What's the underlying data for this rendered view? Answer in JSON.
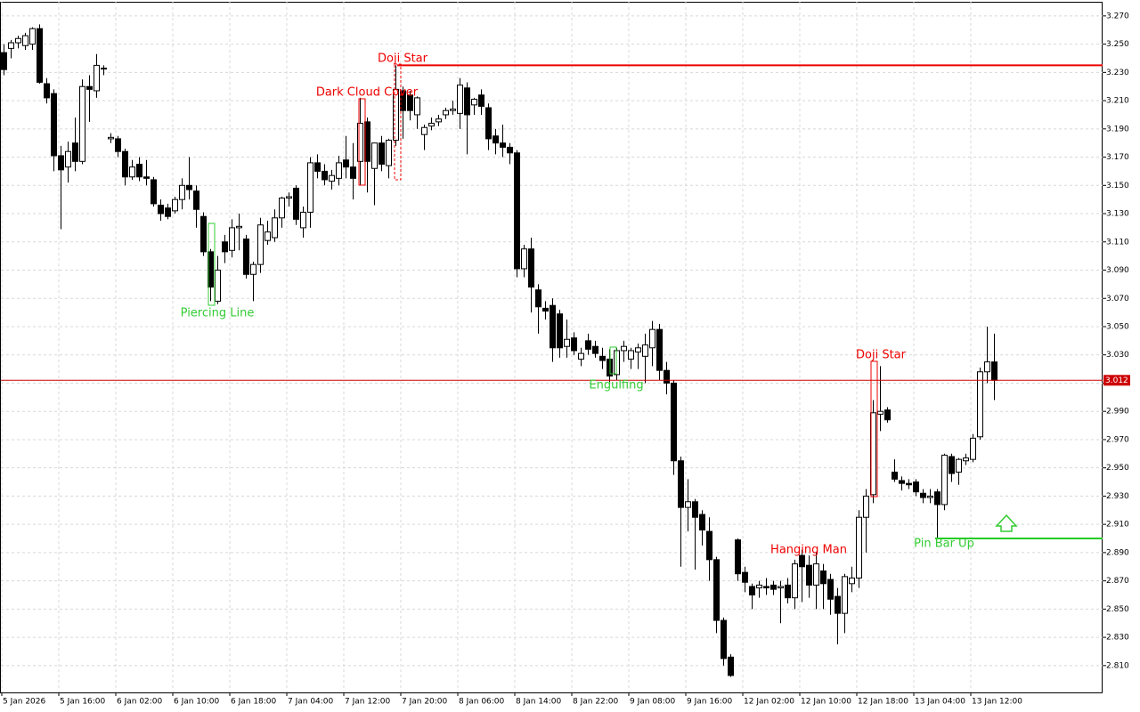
{
  "chart_data": {
    "type": "candlestick",
    "categories": [
      "5 Jan 2026",
      null,
      null,
      null,
      null,
      null,
      null,
      null,
      "5 Jan 16:00",
      null,
      null,
      null,
      null,
      null,
      null,
      null,
      "6 Jan 02:00",
      null,
      null,
      null,
      null,
      null,
      null,
      null,
      "6 Jan 10:00",
      null,
      null,
      null,
      null,
      null,
      null,
      null,
      "6 Jan 18:00",
      null,
      null,
      null,
      null,
      null,
      null,
      null,
      "7 Jan 04:00",
      null,
      null,
      null,
      null,
      null,
      null,
      null,
      "7 Jan 12:00",
      null,
      null,
      null,
      null,
      null,
      null,
      null,
      "7 Jan 20:00",
      null,
      null,
      null,
      null,
      null,
      null,
      null,
      "8 Jan 06:00",
      null,
      null,
      null,
      null,
      null,
      null,
      null,
      "8 Jan 14:00",
      null,
      null,
      null,
      null,
      null,
      null,
      null,
      "8 Jan 22:00",
      null,
      null,
      null,
      null,
      null,
      null,
      null,
      "9 Jan 08:00",
      null,
      null,
      null,
      null,
      null,
      null,
      null,
      "9 Jan 16:00",
      null,
      null,
      null,
      null,
      null,
      null,
      null,
      "12 Jan 02:00",
      null,
      null,
      null,
      null,
      null,
      null,
      null,
      "12 Jan 10:00",
      null,
      null,
      null,
      null,
      null,
      null,
      null,
      "12 Jan 18:00",
      null,
      null,
      null,
      null,
      null,
      null,
      null,
      "13 Jan 04:00",
      null,
      null,
      null,
      null,
      null,
      null,
      null,
      "13 Jan 12:00",
      null,
      null,
      null
    ],
    "open": [
      3.244,
      3.247,
      3.251,
      3.249,
      3.25,
      3.261,
      3.222,
      3.215,
      3.171,
      3.163,
      3.18,
      3.167,
      3.22,
      3.217,
      3.233,
      3.183,
      3.183,
      3.174,
      3.156,
      3.165,
      3.156,
      3.154,
      3.136,
      3.134,
      3.132,
      3.14,
      3.15,
      3.146,
      3.128,
      3.103,
      3.068,
      3.11,
      3.104,
      3.12,
      3.112,
      3.087,
      3.094,
      3.111,
      3.113,
      3.127,
      3.141,
      3.148,
      3.12,
      3.131,
      3.166,
      3.16,
      3.153,
      3.155,
      3.168,
      3.163,
      3.167,
      3.195,
      3.162,
      3.18,
      3.164,
      3.182,
      3.217,
      3.214,
      3.2,
      3.186,
      3.192,
      3.195,
      3.2,
      3.203,
      3.201,
      3.219,
      3.207,
      3.214,
      3.205,
      3.185,
      3.18,
      3.177,
      3.173,
      3.091,
      3.105,
      3.076,
      3.063,
      3.065,
      3.059,
      3.036,
      3.042,
      3.027,
      3.04,
      3.036,
      3.029,
      3.027,
      3.016,
      3.033,
      3.027,
      3.032,
      3.029,
      3.035,
      3.048,
      3.019,
      3.01,
      2.955,
      2.922,
      2.926,
      2.917,
      2.905,
      2.885,
      2.842,
      2.816,
      2.899,
      2.876,
      2.866,
      2.865,
      2.866,
      2.867,
      2.865,
      2.867,
      2.858,
      2.888,
      2.881,
      2.867,
      2.877,
      2.871,
      2.859,
      2.847,
      2.868,
      2.872,
      2.915,
      2.931,
      2.988,
      2.991,
      2.947,
      2.941,
      2.939,
      2.94,
      2.932,
      2.929,
      2.933,
      2.924,
      2.958,
      2.947,
      2.955,
      2.956,
      2.972,
      3.018,
      3.025
    ],
    "high": [
      3.25,
      3.253,
      3.256,
      3.258,
      3.262,
      3.264,
      3.226,
      3.218,
      3.178,
      3.181,
      3.198,
      3.225,
      3.228,
      3.243,
      3.235,
      3.187,
      3.185,
      3.176,
      3.168,
      3.17,
      3.168,
      3.156,
      3.14,
      3.137,
      3.142,
      3.155,
      3.17,
      3.15,
      3.131,
      3.105,
      3.1,
      3.115,
      3.126,
      3.13,
      3.115,
      3.096,
      3.127,
      3.125,
      3.133,
      3.142,
      3.145,
      3.15,
      3.135,
      3.17,
      3.172,
      3.165,
      3.161,
      3.171,
      3.185,
      3.18,
      3.212,
      3.198,
      3.18,
      3.185,
      3.183,
      3.235,
      3.22,
      3.217,
      3.213,
      3.193,
      3.198,
      3.2,
      3.205,
      3.21,
      3.226,
      3.223,
      3.212,
      3.218,
      3.208,
      3.19,
      3.193,
      3.18,
      3.175,
      3.108,
      3.113,
      3.08,
      3.068,
      3.07,
      3.062,
      3.055,
      3.046,
      3.035,
      3.045,
      3.04,
      3.035,
      3.034,
      3.035,
      3.04,
      3.035,
      3.038,
      3.045,
      3.054,
      3.052,
      3.025,
      3.012,
      2.958,
      2.942,
      2.928,
      2.92,
      2.915,
      2.887,
      2.844,
      2.818,
      2.9,
      2.88,
      2.868,
      2.87,
      2.872,
      2.87,
      2.87,
      2.872,
      2.885,
      2.892,
      2.888,
      2.89,
      2.882,
      2.875,
      2.865,
      2.875,
      2.88,
      2.92,
      2.935,
      2.998,
      3.022,
      2.993,
      2.956,
      2.944,
      2.942,
      2.942,
      2.935,
      2.935,
      2.935,
      2.96,
      2.96,
      2.957,
      2.96,
      2.974,
      3.021,
      3.05,
      3.045
    ],
    "low": [
      3.228,
      3.24,
      3.247,
      3.246,
      3.246,
      3.222,
      3.208,
      3.16,
      3.119,
      3.152,
      3.16,
      3.165,
      3.195,
      3.212,
      3.228,
      3.18,
      3.17,
      3.15,
      3.154,
      3.153,
      3.15,
      3.135,
      3.125,
      3.126,
      3.13,
      3.133,
      3.14,
      3.12,
      3.1,
      3.068,
      3.066,
      3.095,
      3.099,
      3.104,
      3.084,
      3.068,
      3.088,
      3.108,
      3.11,
      3.12,
      3.135,
      3.122,
      3.113,
      3.12,
      3.155,
      3.15,
      3.147,
      3.15,
      3.155,
      3.14,
      3.15,
      3.145,
      3.136,
      3.16,
      3.155,
      3.178,
      3.183,
      3.196,
      3.19,
      3.175,
      3.189,
      3.192,
      3.197,
      3.2,
      3.19,
      3.172,
      3.2,
      3.2,
      3.175,
      3.172,
      3.17,
      3.165,
      3.085,
      3.085,
      3.06,
      3.045,
      3.055,
      3.025,
      3.028,
      3.028,
      3.03,
      3.022,
      3.03,
      3.028,
      3.02,
      3.01,
      3.012,
      3.025,
      3.02,
      3.02,
      3.01,
      3.022,
      3.012,
      3.002,
      2.945,
      2.88,
      2.905,
      2.878,
      2.895,
      2.87,
      2.833,
      2.81,
      2.802,
      2.87,
      2.862,
      2.85,
      2.858,
      2.86,
      2.86,
      2.84,
      2.854,
      2.85,
      2.855,
      2.858,
      2.85,
      2.85,
      2.846,
      2.825,
      2.833,
      2.862,
      2.865,
      2.89,
      2.925,
      2.976,
      2.982,
      2.94,
      2.934,
      2.935,
      2.93,
      2.925,
      2.925,
      2.9,
      2.92,
      2.94,
      2.938,
      2.952,
      2.954,
      2.97,
      3.01,
      2.998
    ],
    "close": [
      3.232,
      3.251,
      3.254,
      3.256,
      3.261,
      3.223,
      3.212,
      3.171,
      3.161,
      3.174,
      3.167,
      3.22,
      3.218,
      3.235,
      3.233,
      3.184,
      3.174,
      3.156,
      3.163,
      3.156,
      3.155,
      3.137,
      3.13,
      3.128,
      3.14,
      3.15,
      3.147,
      3.133,
      3.103,
      3.078,
      3.09,
      3.103,
      3.12,
      3.121,
      3.087,
      3.094,
      3.122,
      3.117,
      3.127,
      3.141,
      3.142,
      3.126,
      3.131,
      3.166,
      3.16,
      3.154,
      3.157,
      3.166,
      3.163,
      3.155,
      3.194,
      3.167,
      3.18,
      3.165,
      3.182,
      3.218,
      3.203,
      3.203,
      3.212,
      3.191,
      3.194,
      3.197,
      3.203,
      3.204,
      3.221,
      3.2,
      3.211,
      3.206,
      3.183,
      3.18,
      3.177,
      3.173,
      3.091,
      3.105,
      3.078,
      3.064,
      3.061,
      3.035,
      3.035,
      3.041,
      3.033,
      3.031,
      3.034,
      3.031,
      3.026,
      3.015,
      3.033,
      3.036,
      3.033,
      3.035,
      3.037,
      3.048,
      3.019,
      3.01,
      2.955,
      2.922,
      2.926,
      2.915,
      2.906,
      2.885,
      2.842,
      2.815,
      2.803,
      2.875,
      2.869,
      2.86,
      2.867,
      2.865,
      2.864,
      2.866,
      2.858,
      2.882,
      2.88,
      2.867,
      2.882,
      2.868,
      2.857,
      2.847,
      2.873,
      2.872,
      2.915,
      2.93,
      2.989,
      2.99,
      2.984,
      2.942,
      2.939,
      2.938,
      2.933,
      2.929,
      2.93,
      2.924,
      2.959,
      2.946,
      2.956,
      2.957,
      2.971,
      3.018,
      3.025,
      3.012
    ],
    "ylim": [
      2.791,
      3.28
    ],
    "yticks": [
      {
        "value": 3.27,
        "label": "3.270"
      },
      {
        "value": 3.25,
        "label": "3.250"
      },
      {
        "value": 3.23,
        "label": "3.230"
      },
      {
        "value": 3.21,
        "label": "3.210"
      },
      {
        "value": 3.19,
        "label": "3.190"
      },
      {
        "value": 3.17,
        "label": "3.170"
      },
      {
        "value": 3.15,
        "label": "3.150"
      },
      {
        "value": 3.13,
        "label": "3.130"
      },
      {
        "value": 3.11,
        "label": "3.110"
      },
      {
        "value": 3.09,
        "label": "3.090"
      },
      {
        "value": 3.07,
        "label": "3.070"
      },
      {
        "value": 3.05,
        "label": "3.050"
      },
      {
        "value": 3.03,
        "label": "3.030"
      },
      {
        "value": 3.01,
        "label": "3.010"
      },
      {
        "value": 2.99,
        "label": "2.990"
      },
      {
        "value": 2.97,
        "label": "2.970"
      },
      {
        "value": 2.95,
        "label": "2.950"
      },
      {
        "value": 2.93,
        "label": "2.930"
      },
      {
        "value": 2.91,
        "label": "2.910"
      },
      {
        "value": 2.89,
        "label": "2.890"
      },
      {
        "value": 2.87,
        "label": "2.870"
      },
      {
        "value": 2.85,
        "label": "2.850"
      },
      {
        "value": 2.83,
        "label": "2.830"
      },
      {
        "value": 2.81,
        "label": "2.810"
      }
    ],
    "grid": true,
    "up_color": "#ffffff",
    "down_color": "#000000",
    "last_price": 3.012,
    "last_price_color": "#cc0000",
    "levels": [
      {
        "value": 3.235,
        "color": "#ee0000"
      },
      {
        "value": 2.9,
        "color": "#22cc22"
      }
    ],
    "annotations": [
      {
        "text": "Piercing Line",
        "color": "#33cc33"
      },
      {
        "text": "Dark Cloud Cover",
        "color": "#ee0000"
      },
      {
        "text": "Doji Star",
        "color": "#ee0000"
      },
      {
        "text": "Engulfing",
        "color": "#33cc33"
      },
      {
        "text": "Hanging Man",
        "color": "#ee0000"
      },
      {
        "text": "Doji Star",
        "color": "#ee0000"
      },
      {
        "text": "Pin Bar Up",
        "color": "#33cc33"
      }
    ]
  }
}
